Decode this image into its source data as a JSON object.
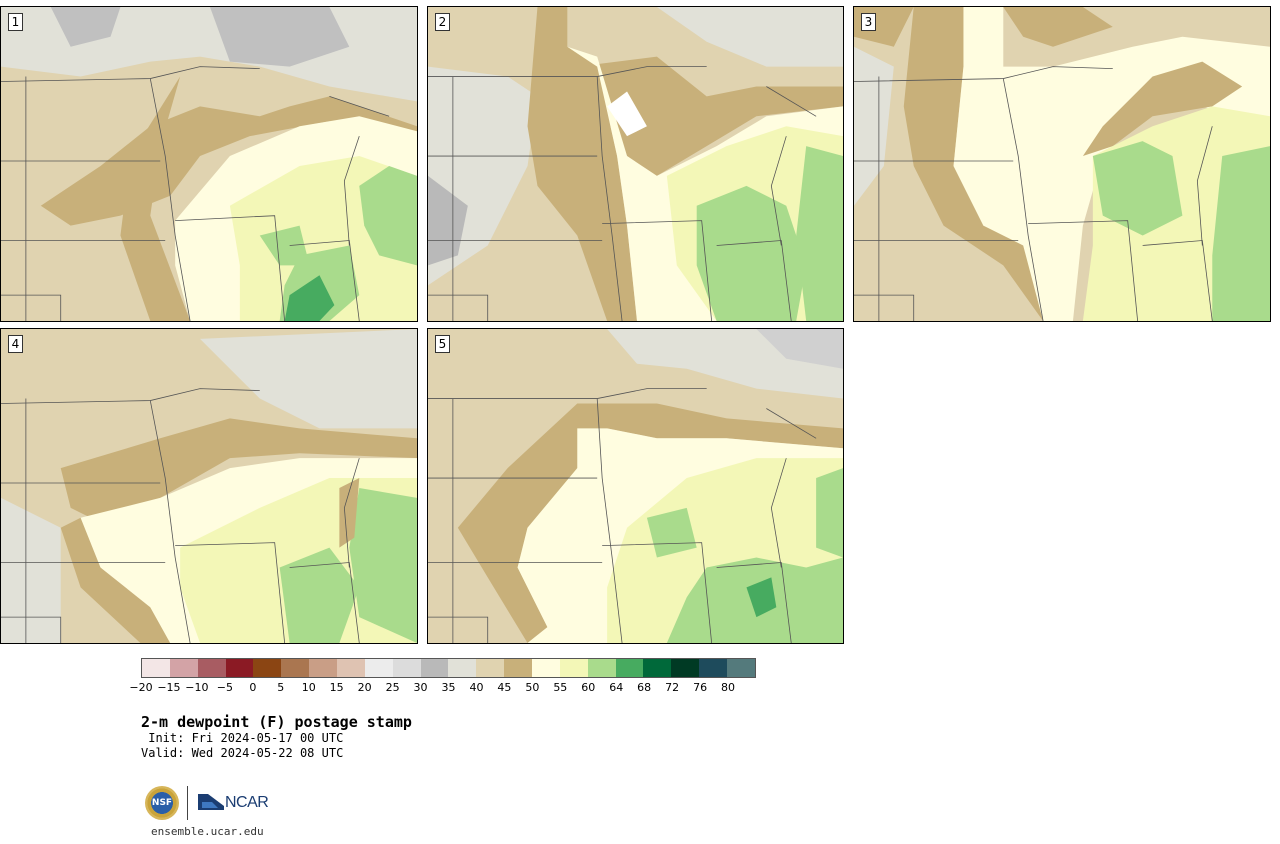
{
  "panels": [
    {
      "label": "1"
    },
    {
      "label": "2"
    },
    {
      "label": "3"
    },
    {
      "label": "4"
    },
    {
      "label": "5"
    }
  ],
  "colorbar": {
    "colors": [
      "#f3e6e6",
      "#d3a3a6",
      "#a85c62",
      "#8b1a24",
      "#8b4513",
      "#aa7650",
      "#c99e86",
      "#dfc3b2",
      "#ececec",
      "#dcdcdc",
      "#b9b9b9",
      "#e1e1d8",
      "#e0d3b0",
      "#c8b07a",
      "#fffde0",
      "#f3f7b7",
      "#a9db8c",
      "#47ab60",
      "#00693a",
      "#003a24",
      "#1e4b5c",
      "#547a7c"
    ],
    "ticks": [
      "−20",
      "−15",
      "−10",
      "−5",
      "0",
      "5",
      "10",
      "15",
      "20",
      "25",
      "30",
      "35",
      "40",
      "45",
      "50",
      "55",
      "60",
      "64",
      "68",
      "72",
      "76",
      "80"
    ]
  },
  "title": "2-m dewpoint (F) postage stamp",
  "init": " Init: Fri 2024-05-17 00 UTC",
  "valid": "Valid: Wed 2024-05-22 08 UTC",
  "logos": {
    "nsf": "NSF",
    "ncar": "NCAR"
  },
  "site": "ensemble.ucar.edu"
}
